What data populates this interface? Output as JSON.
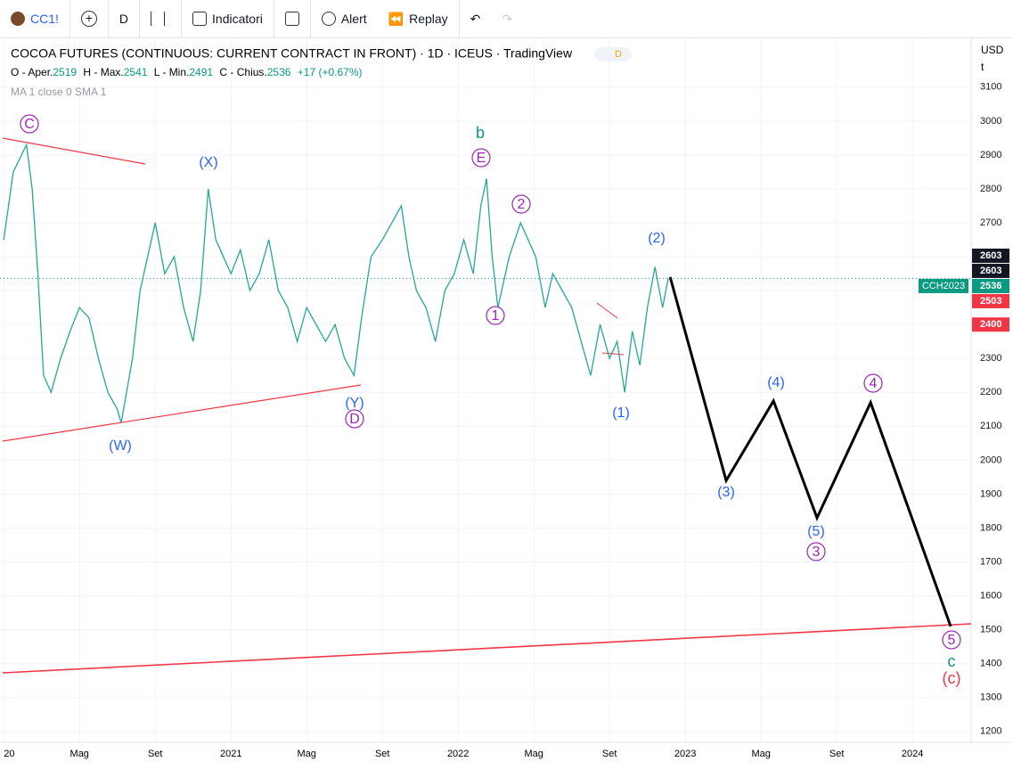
{
  "toolbar": {
    "symbol": "CC1!",
    "interval": "D",
    "indicators": "Indicatori",
    "alert": "Alert",
    "replay": "Replay"
  },
  "header": {
    "title": "COCOA FUTURES (CONTINUOUS: CURRENT CONTRACT IN FRONT) · 1D · ICEUS · TradingView",
    "badge": "D",
    "ohlc": [
      {
        "label": "O - Aper.",
        "value": "2519"
      },
      {
        "label": "H - Max.",
        "value": "2541"
      },
      {
        "label": "L - Min.",
        "value": "2491"
      },
      {
        "label": "C - Chius.",
        "value": "2536"
      }
    ],
    "change": "+17 (+0.67%)",
    "indicator": "MA 1 close 0 SMA 1",
    "currency": "USD",
    "unit": "t"
  },
  "wave_labels": [
    "C",
    "(X)",
    "b",
    "E",
    "2",
    "(2)",
    "1",
    "(Y)",
    "D",
    "(W)",
    "(1)",
    "(4)",
    "4",
    "(3)",
    "(5)",
    "3",
    "5",
    "c",
    "(c)"
  ],
  "price_tags": [
    {
      "value": 2603,
      "color": "#131722"
    },
    {
      "value": 2603,
      "color": "#131722"
    },
    {
      "value": 2536,
      "color": "#089981",
      "name": "CCH2023"
    },
    {
      "value": 2503,
      "color": "#f23645"
    },
    {
      "value": 2400,
      "color": "#f23645"
    }
  ],
  "chart_data": [
    {
      "type": "line",
      "color": "#26a69a",
      "x": [
        0,
        0.5,
        1.2,
        1.5,
        1.8,
        2.1,
        2.5,
        3,
        3.5,
        4,
        4.5,
        5,
        5.5,
        6,
        6.2,
        6.8,
        7.2,
        7.6,
        8,
        8.5,
        9,
        9.5,
        10,
        10.4,
        10.8,
        11.2,
        11.6,
        12,
        12.5,
        13,
        13.5,
        14,
        14.5,
        15,
        15.5,
        16,
        16.5,
        17,
        17.5,
        18,
        18.5,
        18.9,
        19.4,
        20,
        20.5,
        21,
        21.4,
        21.8,
        22.3,
        22.8,
        23.3,
        23.8,
        24.3,
        24.8,
        25.2,
        25.5,
        25.8,
        26.1,
        26.7,
        27.3,
        27.7,
        28.1,
        28.6,
        29,
        29.5,
        30,
        30.5,
        31,
        31.5,
        32,
        32.4,
        32.8,
        33.2,
        33.6,
        34,
        34.4,
        34.8,
        35.1
      ],
      "values": [
        2650,
        2850,
        2930,
        2800,
        2550,
        2250,
        2200,
        2300,
        2380,
        2450,
        2420,
        2300,
        2200,
        2150,
        2110,
        2300,
        2500,
        2600,
        2700,
        2550,
        2600,
        2450,
        2350,
        2500,
        2800,
        2650,
        2600,
        2550,
        2620,
        2500,
        2550,
        2650,
        2500,
        2450,
        2350,
        2450,
        2400,
        2350,
        2400,
        2300,
        2250,
        2420,
        2600,
        2650,
        2700,
        2750,
        2600,
        2500,
        2450,
        2350,
        2500,
        2550,
        2650,
        2550,
        2750,
        2830,
        2600,
        2450,
        2600,
        2700,
        2650,
        2600,
        2450,
        2550,
        2500,
        2450,
        2350,
        2250,
        2400,
        2300,
        2350,
        2200,
        2380,
        2280,
        2450,
        2570,
        2450,
        2536
      ],
      "xlim": [
        -0.2,
        51.1
      ],
      "xticks": [
        {
          "value": 0,
          "label": "20"
        },
        {
          "value": 4,
          "label": "Mag"
        },
        {
          "value": 8,
          "label": "Set"
        },
        {
          "value": 12,
          "label": "2021"
        },
        {
          "value": 16,
          "label": "Mag"
        },
        {
          "value": 20,
          "label": "Set"
        },
        {
          "value": 24,
          "label": "2022"
        },
        {
          "value": 28,
          "label": "Mag"
        },
        {
          "value": 32,
          "label": "Set"
        },
        {
          "value": 36,
          "label": "2023"
        },
        {
          "value": 40,
          "label": "Mag"
        },
        {
          "value": 44,
          "label": "Set"
        },
        {
          "value": 48,
          "label": "2024"
        }
      ],
      "ylim": [
        1168,
        3244
      ],
      "yticks": [
        1200,
        1300,
        1400,
        1500,
        1600,
        1700,
        1800,
        1900,
        2000,
        2100,
        2200,
        2300,
        2400,
        2500,
        2600,
        2700,
        2800,
        2900,
        3000,
        3100
      ],
      "grid": true
    },
    {
      "type": "line",
      "color": "#000000",
      "x": [
        35.2,
        38.16,
        40.66,
        42.96,
        45.79,
        50.02
      ],
      "values": [
        2540,
        1940,
        2175,
        1830,
        2170,
        1510
      ]
    }
  ]
}
